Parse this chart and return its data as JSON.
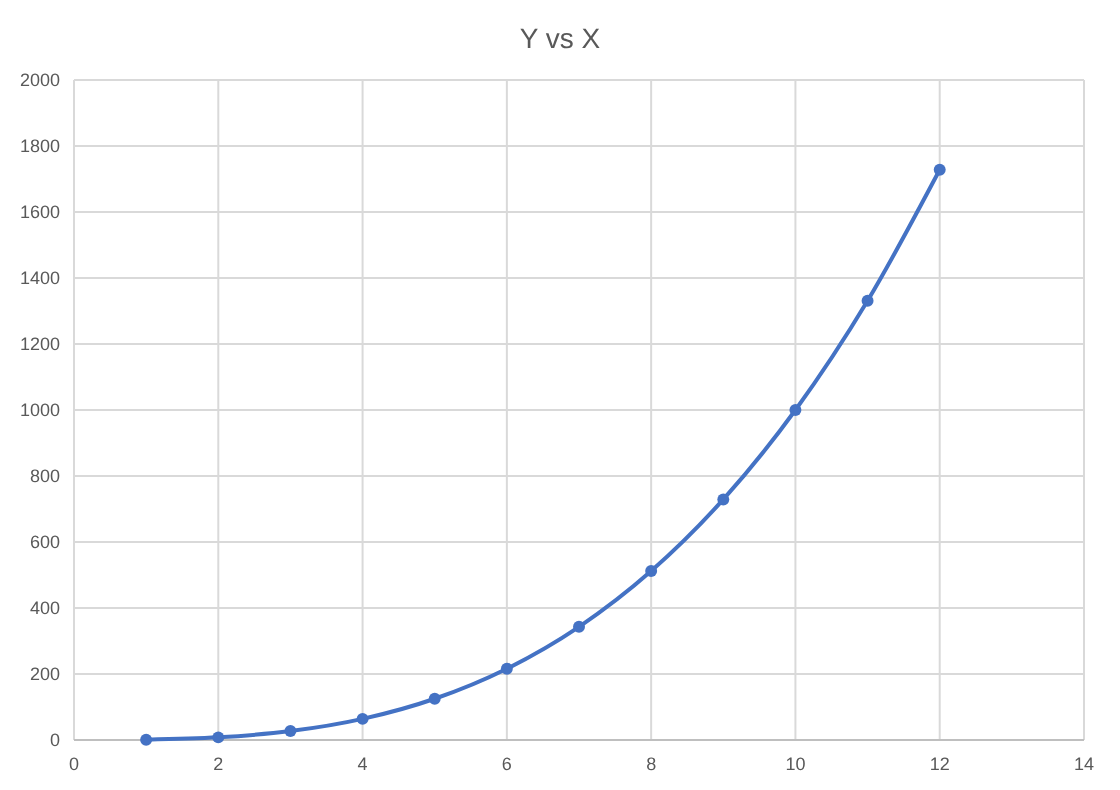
{
  "chart_data": {
    "type": "line",
    "title": "Y vs X",
    "x": [
      1,
      2,
      3,
      4,
      5,
      6,
      7,
      8,
      9,
      10,
      11,
      12
    ],
    "series": [
      {
        "color": "#4472c4",
        "values": [
          1,
          8,
          27,
          64,
          125,
          216,
          343,
          512,
          729,
          1000,
          1331,
          1728
        ]
      }
    ],
    "xlim": [
      0,
      14
    ],
    "xticks": [
      0,
      2,
      4,
      6,
      8,
      10,
      12,
      14
    ],
    "ylim": [
      0,
      2000
    ],
    "yticks": [
      0,
      200,
      400,
      600,
      800,
      1000,
      1200,
      1400,
      1600,
      1800,
      2000
    ],
    "grid": true,
    "marker": "circle",
    "line_style": "solid"
  }
}
